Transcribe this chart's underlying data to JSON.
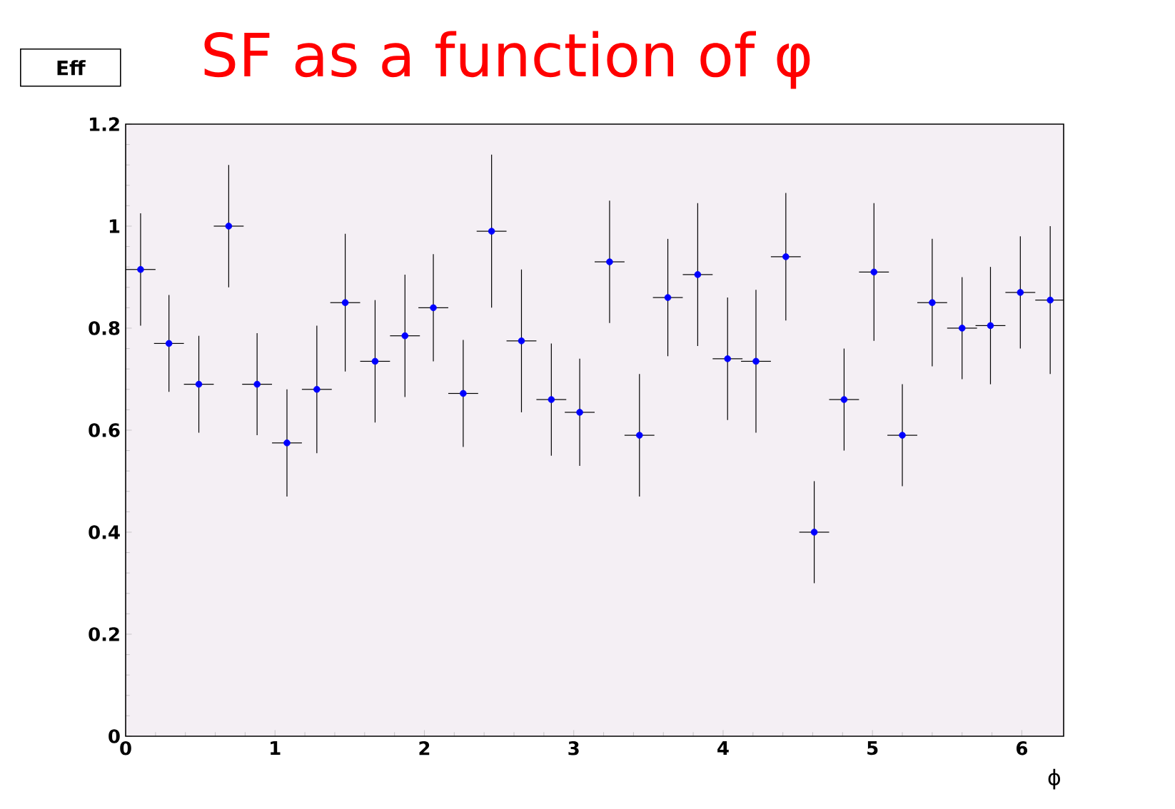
{
  "chart_data": {
    "type": "scatter",
    "title": "SF as a function of φ",
    "xlabel": "ϕ",
    "annotations": [
      "Eff"
    ],
    "x": [
      0.1,
      0.29,
      0.49,
      0.69,
      0.88,
      1.08,
      1.28,
      1.47,
      1.67,
      1.87,
      2.06,
      2.26,
      2.45,
      2.65,
      2.85,
      3.04,
      3.24,
      3.44,
      3.63,
      3.83,
      4.03,
      4.22,
      4.42,
      4.61,
      4.81,
      5.01,
      5.2,
      5.4,
      5.6,
      5.79,
      5.99,
      6.19
    ],
    "series": [
      {
        "color": "#0000ff",
        "values": [
          0.915,
          0.77,
          0.69,
          1.0,
          0.69,
          0.575,
          0.68,
          0.85,
          0.735,
          0.785,
          0.84,
          0.672,
          0.99,
          0.775,
          0.66,
          0.635,
          0.93,
          0.59,
          0.86,
          0.905,
          0.74,
          0.735,
          0.94,
          0.4,
          0.66,
          0.91,
          0.59,
          0.85,
          0.8,
          0.805,
          0.87,
          0.855
        ],
        "errors": [
          0.11,
          0.095,
          0.095,
          0.12,
          0.1,
          0.105,
          0.125,
          0.135,
          0.12,
          0.12,
          0.105,
          0.105,
          0.15,
          0.14,
          0.11,
          0.105,
          0.12,
          0.12,
          0.115,
          0.14,
          0.12,
          0.14,
          0.125,
          0.1,
          0.1,
          0.135,
          0.1,
          0.125,
          0.1,
          0.115,
          0.11,
          0.145
        ],
        "xerrors": [
          0.1,
          0.1,
          0.1,
          0.1,
          0.1,
          0.1,
          0.1,
          0.1,
          0.1,
          0.1,
          0.1,
          0.1,
          0.1,
          0.1,
          0.1,
          0.1,
          0.1,
          0.1,
          0.1,
          0.1,
          0.1,
          0.1,
          0.1,
          0.1,
          0.1,
          0.1,
          0.1,
          0.1,
          0.1,
          0.1,
          0.1,
          0.1
        ]
      }
    ],
    "xlim": [
      0,
      6.28
    ],
    "ylim": [
      0,
      1.2
    ],
    "xticks": [
      0,
      1,
      2,
      3,
      4,
      5,
      6
    ],
    "yticks": [
      0,
      0.2,
      0.4,
      0.6,
      0.8,
      1,
      1.2
    ],
    "marker": "circle",
    "grid": false
  }
}
